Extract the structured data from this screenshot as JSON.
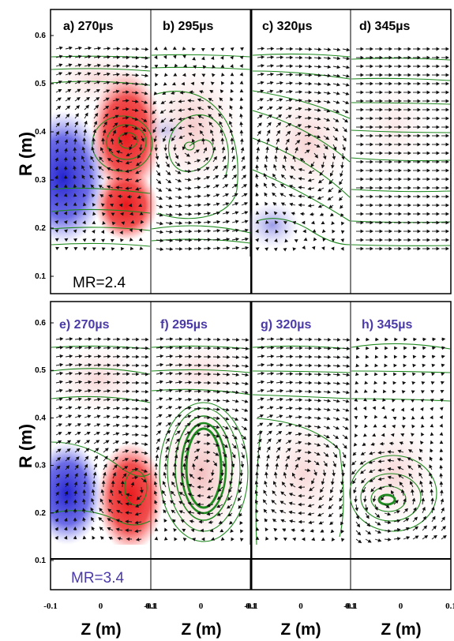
{
  "chart_data": {
    "type": "vector-field",
    "ylabel": "R (m)",
    "xlabel": "Z (m)",
    "yticks": [
      "0.1",
      "0.2",
      "0.3",
      "0.4",
      "0.5",
      "0.6"
    ],
    "xticks": [
      "-0.1",
      "0",
      "0.1"
    ],
    "rows": [
      {
        "label": "MR=2.4",
        "panels": [
          {
            "title": "a) 270µs"
          },
          {
            "title": "b) 295µs"
          },
          {
            "title": "c) 320µs"
          },
          {
            "title": "d) 345µs"
          }
        ]
      },
      {
        "label": "MR=3.4",
        "panels": [
          {
            "title": "e) 270µs"
          },
          {
            "title": "f) 295µs"
          },
          {
            "title": "g) 320µs"
          },
          {
            "title": "h) 345µs"
          }
        ]
      }
    ],
    "colors": {
      "positive": "#e8191c",
      "negative": "#2b2bd8",
      "flux_lines": "#1f8a1f",
      "arrows": "#111111",
      "bottom_titles": "#4a3aa8"
    }
  }
}
